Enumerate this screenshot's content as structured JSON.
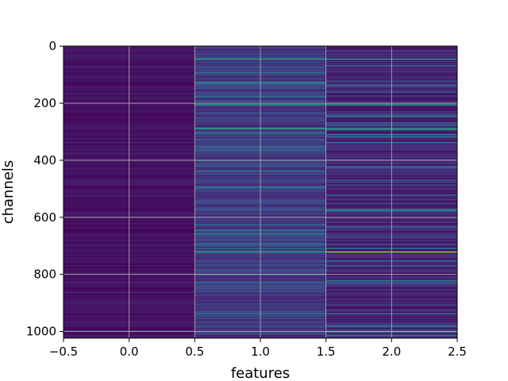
{
  "chart_data": {
    "type": "heatmap",
    "title": "",
    "xlabel": "features",
    "ylabel": "channels",
    "xlim": [
      -0.5,
      2.5
    ],
    "ylim": [
      1023.5,
      -0.5
    ],
    "x_ticks": [
      "−0.5",
      "0.0",
      "0.5",
      "1.0",
      "1.5",
      "2.0",
      "2.5"
    ],
    "y_ticks": [
      "0",
      "200",
      "400",
      "600",
      "800",
      "1000"
    ],
    "grid": true,
    "colormap": "viridis",
    "n_rows": 1024,
    "n_cols": 3,
    "columns": [
      {
        "feature": 0,
        "base_level": 0.05,
        "variation": "very low"
      },
      {
        "feature": 1,
        "base_level": 0.18,
        "variation": "moderate"
      },
      {
        "feature": 2,
        "base_level": 0.12,
        "variation": "moderate"
      }
    ],
    "highlighted_cells": [
      {
        "channel": 45,
        "feature": 1,
        "value": 0.6
      },
      {
        "channel": 45,
        "feature": 2,
        "value": 0.55
      },
      {
        "channel": 205,
        "feature": 1,
        "value": 0.55
      },
      {
        "channel": 205,
        "feature": 2,
        "value": 0.6
      },
      {
        "channel": 290,
        "feature": 1,
        "value": 0.6
      },
      {
        "channel": 290,
        "feature": 2,
        "value": 0.6
      },
      {
        "channel": 720,
        "feature": 1,
        "value": 0.6
      },
      {
        "channel": 720,
        "feature": 2,
        "value": 0.85
      },
      {
        "channel": 1000,
        "feature": 2,
        "value": 0.5
      }
    ]
  }
}
